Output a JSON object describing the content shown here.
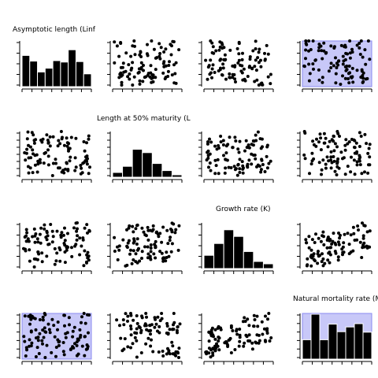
{
  "chart_data": {
    "type": "scatter-matrix",
    "variables": [
      "Asymptotic length (Linf",
      "Length at 50% maturity (L",
      "Growth rate (K)",
      "Natural mortality rate (M"
    ],
    "colors": {
      "points": "#000000",
      "bars": "#000000",
      "bar_edge": "#ffffff",
      "highlight": "#c8c8f8",
      "highlight_edge": "#8a8af0",
      "axis": "#000000"
    },
    "grid": false,
    "diagonal": "histogram",
    "highlighted_panels": [
      [
        0,
        3
      ],
      [
        3,
        0
      ],
      [
        3,
        3
      ]
    ],
    "histograms": [
      [
        0.66,
        0.54,
        0.31,
        0.39,
        0.55,
        0.52,
        0.78,
        0.53,
        0.27
      ],
      [
        0.1,
        0.23,
        0.59,
        0.52,
        0.29,
        0.14,
        0.05
      ],
      [
        0.28,
        0.53,
        0.82,
        0.68,
        0.36,
        0.15,
        0.1
      ],
      [
        0.41,
        0.95,
        0.41,
        0.74,
        0.58,
        0.68,
        0.75,
        0.57
      ]
    ],
    "scatter": [
      {
        "row": 0,
        "col": 1,
        "seed": 101,
        "corr": 0.0,
        "n": 100
      },
      {
        "row": 0,
        "col": 2,
        "seed": 102,
        "corr": -0.1,
        "n": 100
      },
      {
        "row": 0,
        "col": 3,
        "seed": 103,
        "corr": 0.0,
        "n": 100
      },
      {
        "row": 1,
        "col": 0,
        "seed": 201,
        "corr": 0.0,
        "n": 100
      },
      {
        "row": 1,
        "col": 2,
        "seed": 202,
        "corr": 0.1,
        "n": 100
      },
      {
        "row": 1,
        "col": 3,
        "seed": 203,
        "corr": 0.0,
        "n": 100
      },
      {
        "row": 2,
        "col": 0,
        "seed": 301,
        "corr": 0.1,
        "n": 100
      },
      {
        "row": 2,
        "col": 1,
        "seed": 302,
        "corr": 0.15,
        "n": 100
      },
      {
        "row": 2,
        "col": 3,
        "seed": 303,
        "corr": 0.3,
        "n": 100
      },
      {
        "row": 3,
        "col": 0,
        "seed": 401,
        "corr": 0.0,
        "n": 100
      },
      {
        "row": 3,
        "col": 1,
        "seed": 402,
        "corr": 0.0,
        "n": 100
      },
      {
        "row": 3,
        "col": 2,
        "seed": 403,
        "corr": 0.35,
        "n": 100
      }
    ]
  }
}
